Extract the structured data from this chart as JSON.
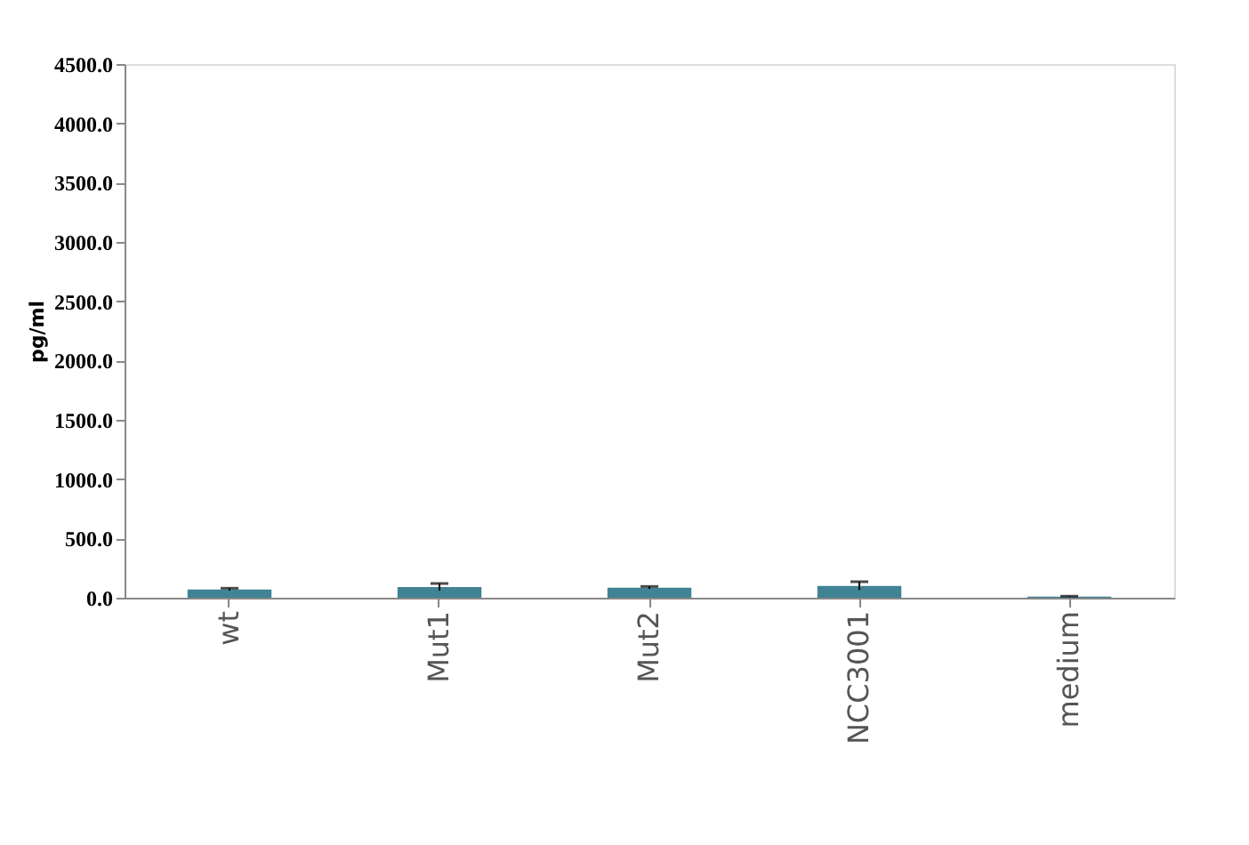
{
  "chart_data": {
    "type": "bar",
    "ylabel": "pg/ml",
    "categories": [
      "wt",
      "Mut1",
      "Mut2",
      "NCC3001",
      "medium"
    ],
    "values": [
      70,
      90,
      85,
      100,
      10
    ],
    "errors": [
      10,
      30,
      10,
      35,
      3
    ],
    "color": "#3f8394",
    "ylim": [
      0,
      4500
    ],
    "yticks": [
      {
        "value": 0,
        "label": "0.0"
      },
      {
        "value": 500,
        "label": "500.0"
      },
      {
        "value": 1000,
        "label": "1000.0"
      },
      {
        "value": 1500,
        "label": "1500.0"
      },
      {
        "value": 2000,
        "label": "2000.0"
      },
      {
        "value": 2500,
        "label": "2500.0"
      },
      {
        "value": 3000,
        "label": "3000.0"
      },
      {
        "value": 3500,
        "label": "3500.0"
      },
      {
        "value": 4000,
        "label": "4000.0"
      },
      {
        "value": 4500,
        "label": "4500.0"
      }
    ],
    "grid": false
  }
}
